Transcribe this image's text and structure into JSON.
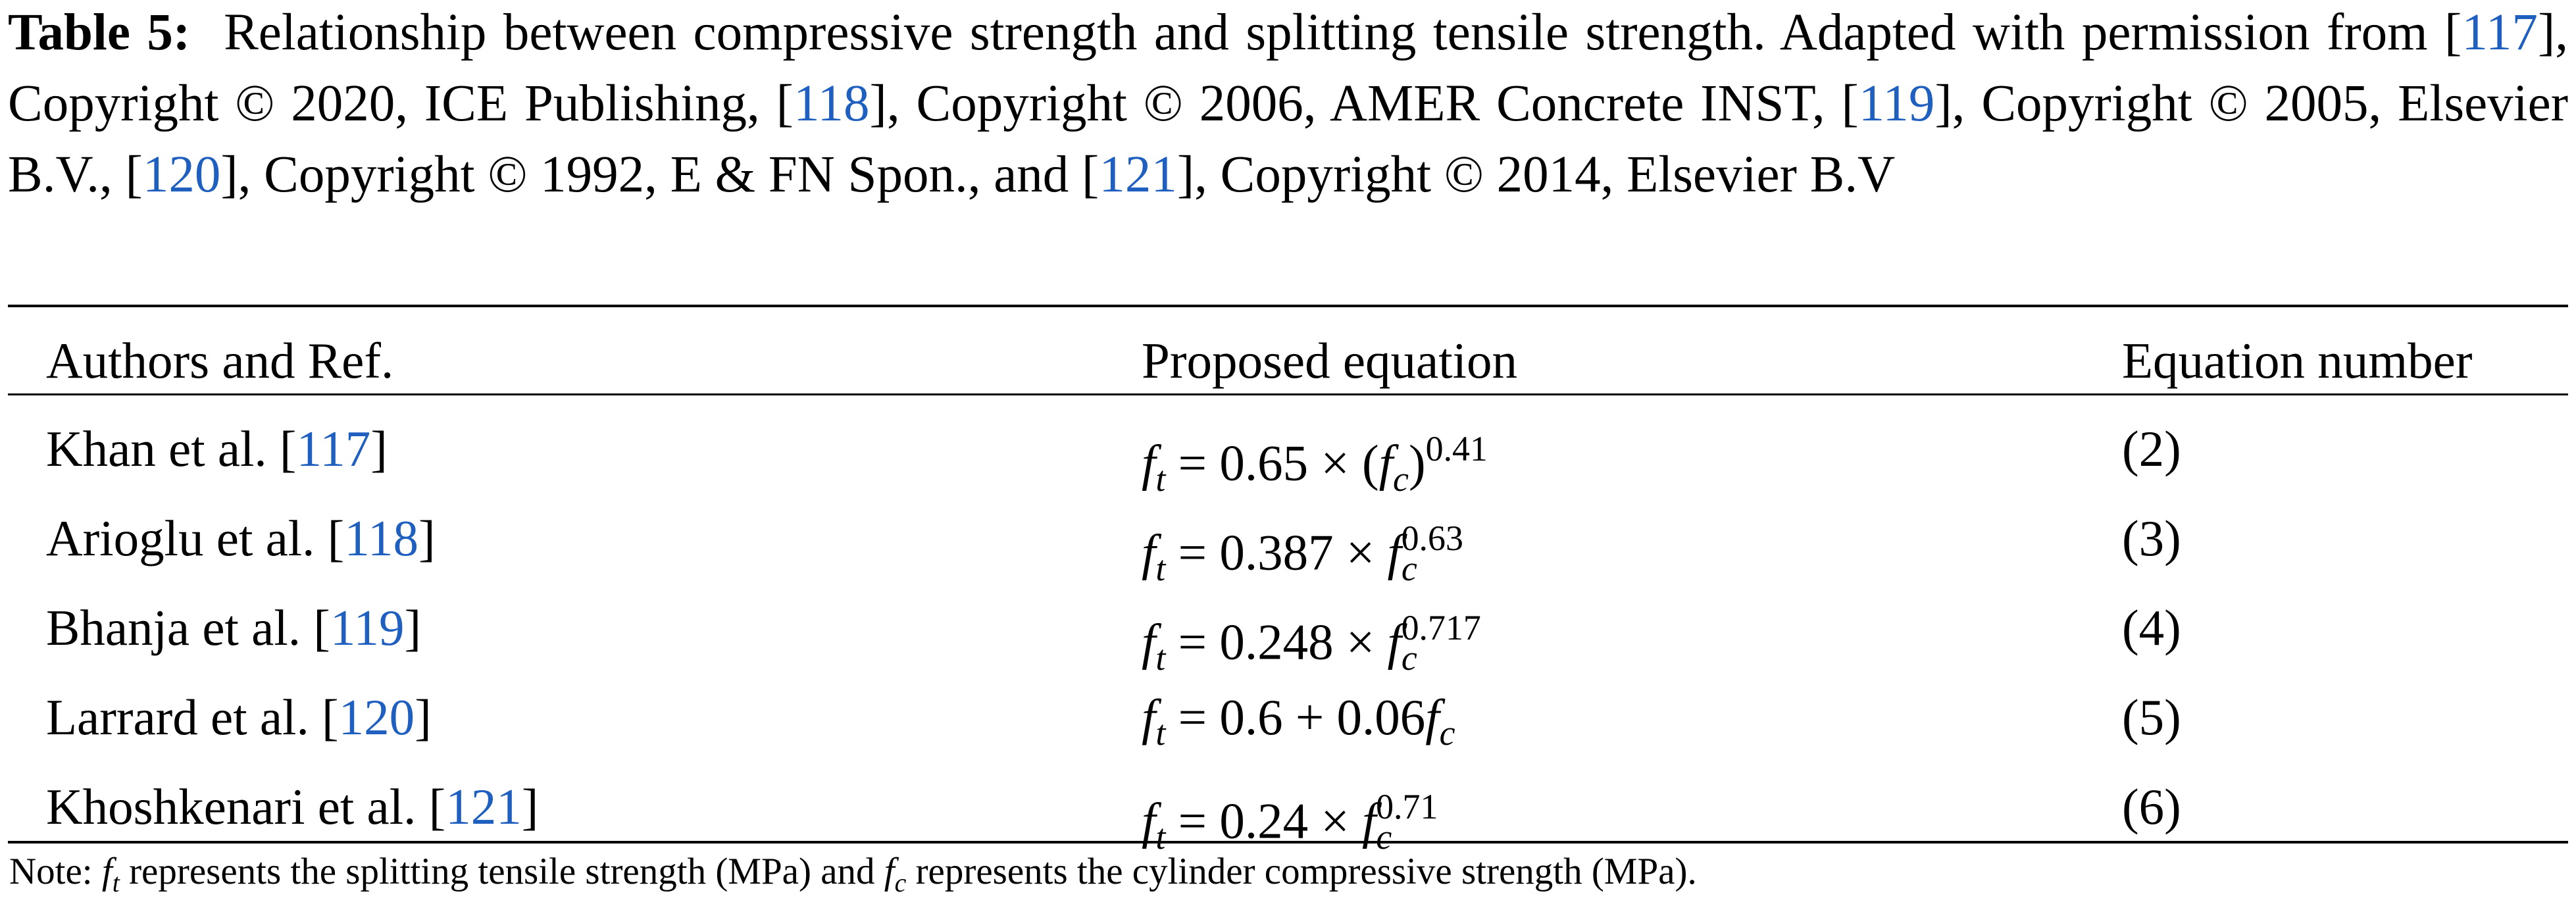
{
  "caption": [
    {
      "text": "Table 5:",
      "style": "b"
    },
    {
      "text": "  Relationship between compressive strength and splitting tensile strength. Adapted with permission from [",
      "style": "plain"
    },
    {
      "text": "117",
      "style": "link"
    },
    {
      "text": "], Copyright © 2020, ICE Publishing, [",
      "style": "plain"
    },
    {
      "text": "118",
      "style": "link"
    },
    {
      "text": "], Copyright © 2006, AMER Concrete INST, [",
      "style": "plain"
    },
    {
      "text": "119",
      "style": "link"
    },
    {
      "text": "], Copyright © 2005, Elsevier B.V., [",
      "style": "plain"
    },
    {
      "text": "120",
      "style": "link"
    },
    {
      "text": "], Copyright © 1992, E & FN Spon., and [",
      "style": "plain"
    },
    {
      "text": "121",
      "style": "link"
    },
    {
      "text": "], Copyright © 2014, Elsevier B.V",
      "style": "plain"
    }
  ],
  "table": {
    "header": [
      "Authors and Ref.",
      "Proposed equation",
      "Equation number"
    ],
    "rows": [
      {
        "author": [
          {
            "text": "Khan et al. [",
            "style": "plain"
          },
          {
            "text": "117",
            "style": "link"
          },
          {
            "text": "]",
            "style": "plain"
          }
        ],
        "equation": [
          {
            "text": "f",
            "style": "i"
          },
          {
            "text": "t",
            "style": "sub"
          },
          {
            "text": " = 0.65 × (",
            "style": "plain"
          },
          {
            "text": "f",
            "style": "i"
          },
          {
            "text": "c",
            "style": "sub"
          },
          {
            "text": ")",
            "style": "plain"
          },
          {
            "text": "0.41",
            "style": "sup"
          }
        ],
        "number": "(2)"
      },
      {
        "author": [
          {
            "text": "Arioglu et al. [",
            "style": "plain"
          },
          {
            "text": "118",
            "style": "link"
          },
          {
            "text": "]",
            "style": "plain"
          }
        ],
        "equation": [
          {
            "text": "f",
            "style": "i"
          },
          {
            "text": "t",
            "style": "sub"
          },
          {
            "text": " = 0.387 × ",
            "style": "plain"
          },
          {
            "text": "f",
            "style": "i"
          },
          {
            "text": "c",
            "style": "sub"
          },
          {
            "text": "0.63",
            "style": "sup"
          }
        ],
        "number": "(3)"
      },
      {
        "author": [
          {
            "text": "Bhanja et al. [",
            "style": "plain"
          },
          {
            "text": "119",
            "style": "link"
          },
          {
            "text": "]",
            "style": "plain"
          }
        ],
        "equation": [
          {
            "text": "f",
            "style": "i"
          },
          {
            "text": "t",
            "style": "sub"
          },
          {
            "text": " = 0.248 × ",
            "style": "plain"
          },
          {
            "text": "f",
            "style": "i"
          },
          {
            "text": "c",
            "style": "sub"
          },
          {
            "text": "0.717",
            "style": "sup"
          }
        ],
        "number": "(4)"
      },
      {
        "author": [
          {
            "text": "Larrard et al. [",
            "style": "plain"
          },
          {
            "text": "120",
            "style": "link"
          },
          {
            "text": "]",
            "style": "plain"
          }
        ],
        "equation": [
          {
            "text": "f",
            "style": "i"
          },
          {
            "text": "t",
            "style": "sub"
          },
          {
            "text": " = 0.6 + 0.06",
            "style": "plain"
          },
          {
            "text": "f",
            "style": "i"
          },
          {
            "text": "c",
            "style": "sub"
          }
        ],
        "number": "(5)"
      },
      {
        "author": [
          {
            "text": "Khoshkenari et al. [",
            "style": "plain"
          },
          {
            "text": "121",
            "style": "link"
          },
          {
            "text": "]",
            "style": "plain"
          }
        ],
        "equation": [
          {
            "text": "f",
            "style": "i"
          },
          {
            "text": "t",
            "style": "sub"
          },
          {
            "text": " = 0.24 × ",
            "style": "plain"
          },
          {
            "text": "f",
            "style": "i"
          },
          {
            "text": "c",
            "style": "sub"
          },
          {
            "text": "0.71",
            "style": "sup"
          }
        ],
        "number": "(6)"
      }
    ]
  },
  "note": [
    {
      "text": "Note: ",
      "style": "plain"
    },
    {
      "text": "f",
      "style": "i"
    },
    {
      "text": "t",
      "style": "sub"
    },
    {
      "text": " represents the splitting tensile strength (MPa) and ",
      "style": "plain"
    },
    {
      "text": "f",
      "style": "i"
    },
    {
      "text": "c",
      "style": "sub"
    },
    {
      "text": " represents the cylinder compressive strength (MPa).",
      "style": "plain"
    }
  ]
}
